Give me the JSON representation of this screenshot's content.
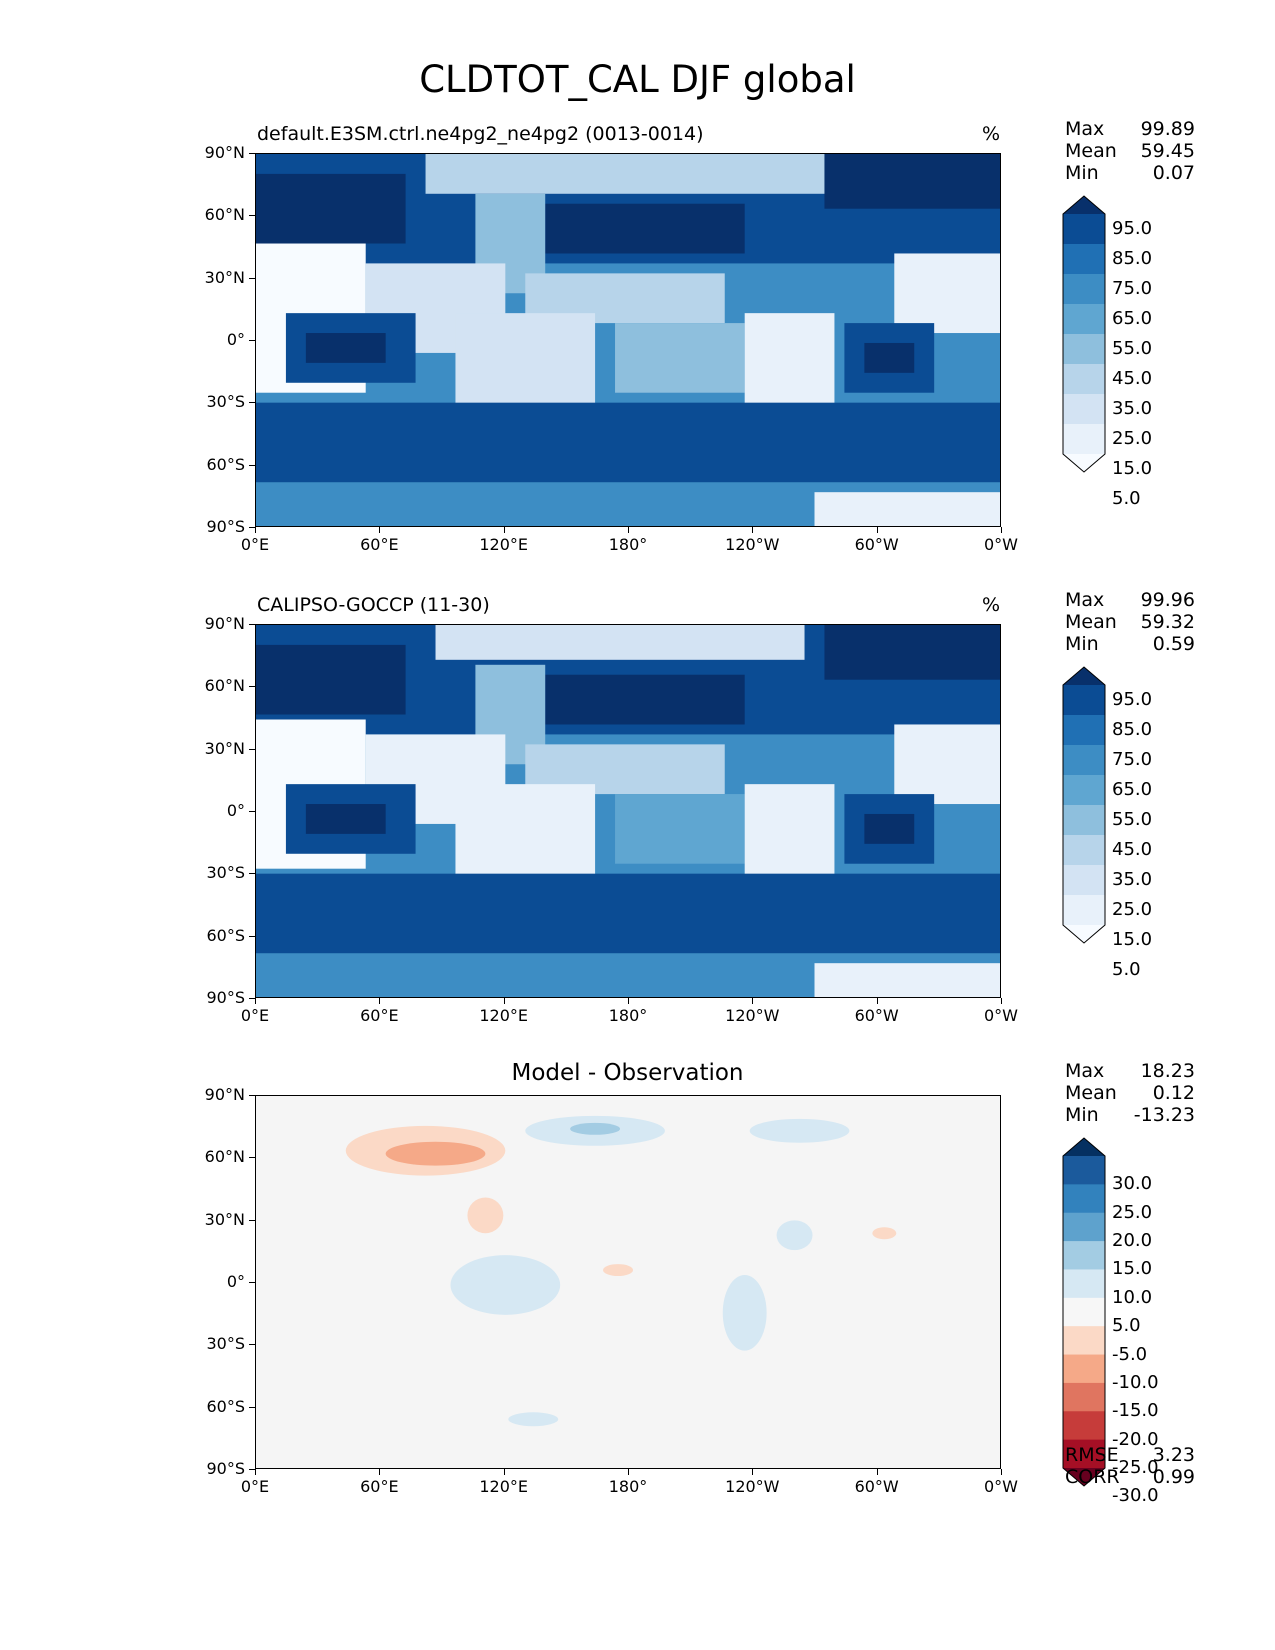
{
  "figure_title": "CLDTOT_CAL DJF global",
  "x_ticks": [
    "0°E",
    "60°E",
    "120°E",
    "180°",
    "120°W",
    "60°W",
    "0°W"
  ],
  "y_ticks": [
    "90°N",
    "60°N",
    "30°N",
    "0°",
    "30°S",
    "60°S",
    "90°S"
  ],
  "panels": [
    {
      "title": "default.E3SM.ctrl.ne4pg2_ne4pg2 (0013-0014)",
      "units": "%",
      "stats": [
        {
          "label": "Max",
          "value": "99.89"
        },
        {
          "label": "Mean",
          "value": "59.45"
        },
        {
          "label": "Min",
          "value": "0.07"
        }
      ],
      "colorbar_labels": [
        "95.0",
        "85.0",
        "75.0",
        "65.0",
        "55.0",
        "45.0",
        "35.0",
        "25.0",
        "15.0",
        "5.0"
      ],
      "colorbar_colors": [
        "#08306b",
        "#0b4c94",
        "#2070b4",
        "#3d8dc4",
        "#5fa6d1",
        "#8ebfdd",
        "#b7d4ea",
        "#d3e3f3",
        "#e8f1fa",
        "#f7fbff"
      ]
    },
    {
      "title": "CALIPSO-GOCCP (11-30)",
      "units": "%",
      "stats": [
        {
          "label": "Max",
          "value": "99.96"
        },
        {
          "label": "Mean",
          "value": "59.32"
        },
        {
          "label": "Min",
          "value": "0.59"
        }
      ],
      "colorbar_labels": [
        "95.0",
        "85.0",
        "75.0",
        "65.0",
        "55.0",
        "45.0",
        "35.0",
        "25.0",
        "15.0",
        "5.0"
      ],
      "colorbar_colors": [
        "#08306b",
        "#0b4c94",
        "#2070b4",
        "#3d8dc4",
        "#5fa6d1",
        "#8ebfdd",
        "#b7d4ea",
        "#d3e3f3",
        "#e8f1fa",
        "#f7fbff"
      ]
    },
    {
      "title": "Model - Observation",
      "units": "",
      "stats": [
        {
          "label": "Max",
          "value": "18.23"
        },
        {
          "label": "Mean",
          "value": "0.12"
        },
        {
          "label": "Min",
          "value": "-13.23"
        }
      ],
      "extra_stats": [
        {
          "label": "RMSE",
          "value": "3.23"
        },
        {
          "label": "CORR",
          "value": "0.99"
        }
      ],
      "colorbar_labels": [
        "30.0",
        "25.0",
        "20.0",
        "15.0",
        "10.0",
        "5.0",
        "-5.0",
        "-10.0",
        "-15.0",
        "-20.0",
        "-25.0",
        "-30.0"
      ],
      "colorbar_colors": [
        "#053061",
        "#1b5a9c",
        "#3282bd",
        "#5ea2cd",
        "#a3cce3",
        "#d6e8f3",
        "#f7f7f7",
        "#fbd9c6",
        "#f5a988",
        "#e07560",
        "#c63c3a",
        "#a50f25",
        "#67001f"
      ]
    }
  ]
}
